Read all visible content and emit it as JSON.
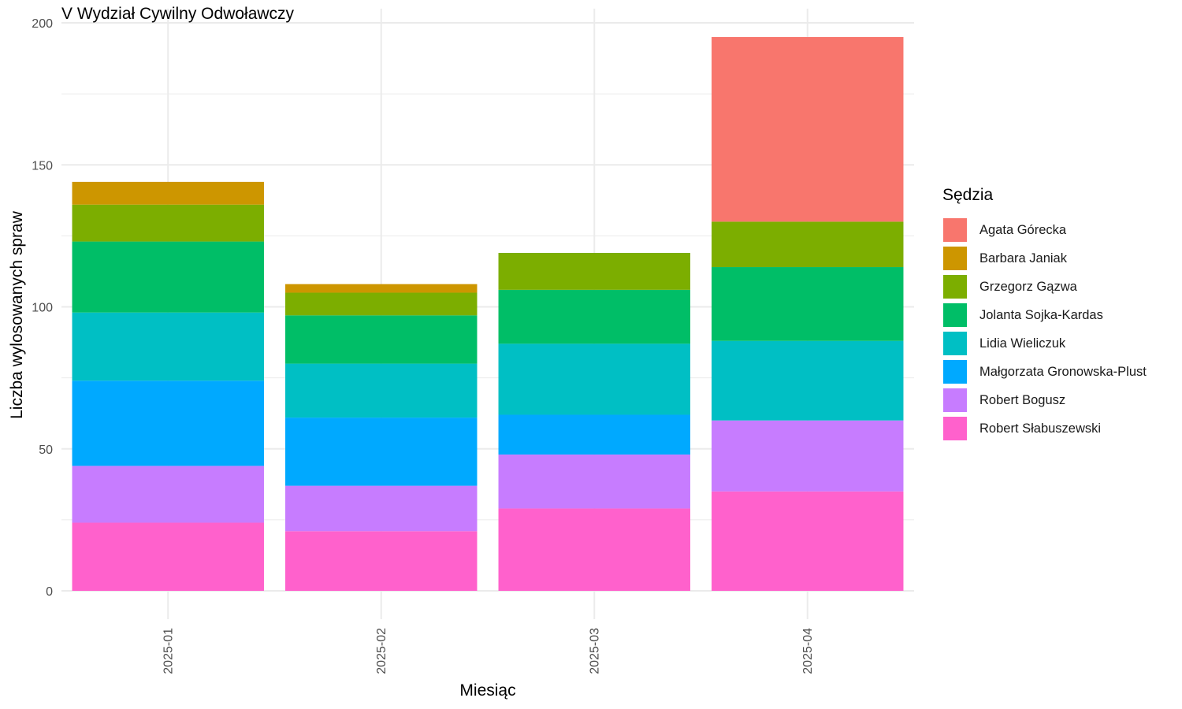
{
  "chart_data": {
    "type": "bar",
    "stacked": true,
    "title": "V Wydział Cywilny Odwoławczy",
    "xlabel": "Miesiąc",
    "ylabel": "Liczba wylosowanych spraw",
    "ylim": [
      0,
      200
    ],
    "yticks": [
      0,
      50,
      100,
      150,
      200
    ],
    "grid": true,
    "legend_title": "Sędzia",
    "legend_position": "right",
    "categories": [
      "2025-01",
      "2025-02",
      "2025-03",
      "2025-04"
    ],
    "series": [
      {
        "name": "Robert Słabuszewski",
        "color": "#FF61CC",
        "values": [
          24,
          21,
          29,
          35
        ]
      },
      {
        "name": "Robert Bogusz",
        "color": "#C77CFF",
        "values": [
          20,
          16,
          19,
          25
        ]
      },
      {
        "name": "Małgorzata Gronowska-Plust",
        "color": "#00A9FF",
        "values": [
          30,
          24,
          14,
          0
        ]
      },
      {
        "name": "Lidia Wieliczuk",
        "color": "#00BFC4",
        "values": [
          24,
          19,
          25,
          28
        ]
      },
      {
        "name": "Jolanta Sojka-Kardas",
        "color": "#00BE67",
        "values": [
          25,
          17,
          19,
          26
        ]
      },
      {
        "name": "Grzegorz Gązwa",
        "color": "#7CAE00",
        "values": [
          13,
          8,
          13,
          16
        ]
      },
      {
        "name": "Barbara Janiak",
        "color": "#CD9600",
        "values": [
          8,
          3,
          0,
          0
        ]
      },
      {
        "name": "Agata Górecka",
        "color": "#F8766D",
        "values": [
          0,
          0,
          0,
          65
        ]
      }
    ],
    "legend_order": [
      "Agata Górecka",
      "Barbara Janiak",
      "Grzegorz Gązwa",
      "Jolanta Sojka-Kardas",
      "Lidia Wieliczuk",
      "Małgorzata Gronowska-Plust",
      "Robert Bogusz",
      "Robert Słabuszewski"
    ]
  }
}
